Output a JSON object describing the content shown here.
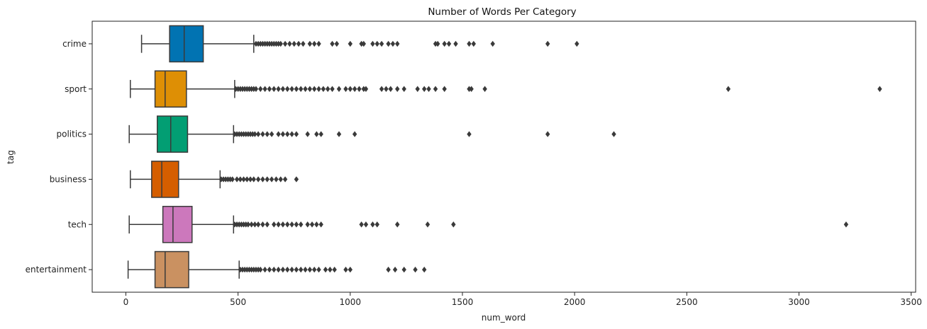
{
  "chart_data": {
    "type": "boxplot",
    "orientation": "horizontal",
    "title": "Number of Words Per Category",
    "xlabel": "num_word",
    "ylabel": "tag",
    "xlim": [
      -150,
      3520
    ],
    "xticks": [
      0,
      500,
      1000,
      1500,
      2000,
      2500,
      3000,
      3500
    ],
    "grid": false,
    "legend": "none",
    "series": [
      {
        "name": "crime",
        "color": "#0173b2",
        "whisker_low": 70,
        "q1": 195,
        "median": 260,
        "q3": 345,
        "whisker_high": 570,
        "outliers": [
          580,
          590,
          600,
          610,
          620,
          630,
          640,
          650,
          660,
          670,
          680,
          690,
          710,
          730,
          750,
          770,
          790,
          820,
          840,
          860,
          920,
          940,
          1000,
          1050,
          1060,
          1100,
          1120,
          1140,
          1170,
          1190,
          1210,
          1380,
          1390,
          1420,
          1440,
          1470,
          1530,
          1550,
          1635,
          1880,
          2010
        ]
      },
      {
        "name": "sport",
        "color": "#de8f05",
        "whisker_low": 20,
        "q1": 130,
        "median": 175,
        "q3": 270,
        "whisker_high": 485,
        "outliers": [
          490,
          500,
          510,
          520,
          530,
          540,
          550,
          560,
          570,
          580,
          600,
          620,
          640,
          660,
          680,
          700,
          720,
          740,
          760,
          780,
          800,
          820,
          840,
          860,
          880,
          900,
          920,
          950,
          980,
          1000,
          1020,
          1040,
          1060,
          1070,
          1140,
          1160,
          1180,
          1210,
          1240,
          1300,
          1330,
          1350,
          1380,
          1420,
          1530,
          1540,
          1600,
          2685,
          3360
        ]
      },
      {
        "name": "politics",
        "color": "#029e73",
        "whisker_low": 15,
        "q1": 140,
        "median": 200,
        "q3": 275,
        "whisker_high": 480,
        "outliers": [
          485,
          495,
          505,
          515,
          525,
          535,
          545,
          555,
          565,
          575,
          590,
          610,
          630,
          650,
          680,
          700,
          720,
          740,
          760,
          810,
          850,
          870,
          950,
          1020,
          1530,
          1880,
          2175
        ]
      },
      {
        "name": "business",
        "color": "#d55e00",
        "whisker_low": 20,
        "q1": 115,
        "median": 160,
        "q3": 235,
        "whisker_high": 420,
        "outliers": [
          425,
          435,
          445,
          455,
          465,
          475,
          495,
          510,
          525,
          540,
          555,
          570,
          590,
          610,
          630,
          650,
          670,
          690,
          710,
          760
        ]
      },
      {
        "name": "tech",
        "color": "#cc78bc",
        "whisker_low": 15,
        "q1": 165,
        "median": 210,
        "q3": 295,
        "whisker_high": 480,
        "outliers": [
          485,
          495,
          505,
          515,
          525,
          535,
          545,
          560,
          575,
          590,
          610,
          630,
          660,
          680,
          700,
          720,
          740,
          760,
          780,
          810,
          830,
          850,
          870,
          1050,
          1070,
          1100,
          1120,
          1210,
          1345,
          1460,
          3210
        ]
      },
      {
        "name": "entertainment",
        "color": "#ca9161",
        "whisker_low": 10,
        "q1": 130,
        "median": 175,
        "q3": 280,
        "whisker_high": 505,
        "outliers": [
          510,
          520,
          530,
          540,
          550,
          560,
          570,
          580,
          590,
          600,
          620,
          640,
          660,
          680,
          700,
          720,
          740,
          760,
          780,
          800,
          820,
          840,
          860,
          890,
          910,
          930,
          980,
          1000,
          1170,
          1200,
          1240,
          1290,
          1330
        ]
      }
    ]
  }
}
